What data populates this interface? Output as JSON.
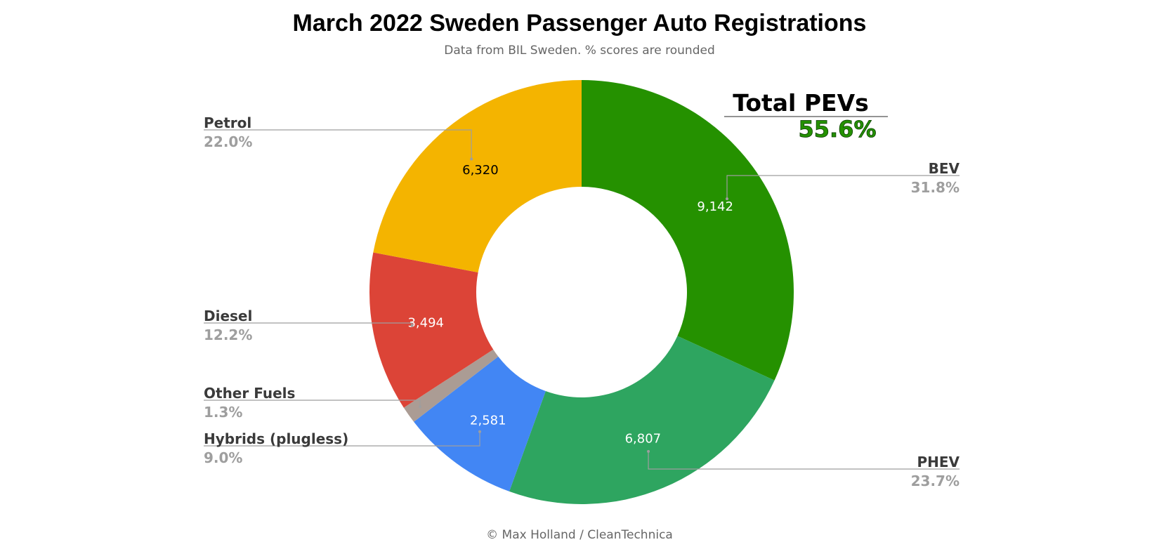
{
  "chart_data": {
    "type": "pie",
    "title": "March 2022 Sweden Passenger Auto Registrations",
    "subtitle": "Data from BIL Sweden. % scores are rounded",
    "footer": "© Max Holland / CleanTechnica",
    "annotation": {
      "label": "Total PEVs",
      "value": "55.6%"
    },
    "slices": [
      {
        "label": "BEV",
        "value": 9142,
        "value_label": "9,142",
        "percent_label": "31.8%",
        "color": "#259100",
        "value_text_color": "#ffffff"
      },
      {
        "label": "PHEV",
        "value": 6807,
        "value_label": "6,807",
        "percent_label": "23.7%",
        "color": "#2ea560",
        "value_text_color": "#ffffff"
      },
      {
        "label": "Hybrids (plugless)",
        "value": 2581,
        "value_label": "2,581",
        "percent_label": "9.0%",
        "color": "#4286f4",
        "value_text_color": "#ffffff"
      },
      {
        "label": "Other Fuels",
        "value": 374,
        "value_label": "",
        "percent_label": "1.3%",
        "color": "#ab9c94",
        "value_text_color": "#ffffff"
      },
      {
        "label": "Diesel",
        "value": 3494,
        "value_label": "3,494",
        "percent_label": "12.2%",
        "color": "#dc4437",
        "value_text_color": "#ffffff"
      },
      {
        "label": "Petrol",
        "value": 6320,
        "value_label": "6,320",
        "percent_label": "22.0%",
        "color": "#f4b400",
        "value_text_color": "#000000"
      }
    ],
    "style": {
      "donut_hole": true,
      "annotation_color": "#259100",
      "label_color": "#3a3a3a",
      "percent_color": "#9e9e9e",
      "leader_color": "#9e9e9e"
    }
  }
}
